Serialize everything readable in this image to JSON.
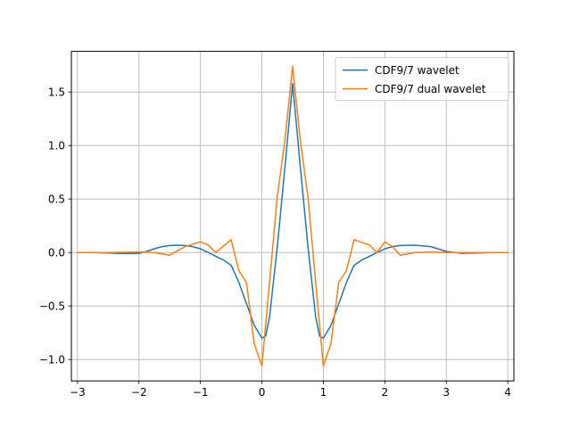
{
  "chart_data": {
    "type": "line",
    "grid": true,
    "legend_position": "top-right",
    "xlim": [
      -3.1,
      4.1
    ],
    "ylim": [
      -1.2,
      1.88
    ],
    "x_ticks": [
      -3,
      -2,
      -1,
      0,
      1,
      2,
      3,
      4
    ],
    "x_tick_labels": [
      "−3",
      "−2",
      "−1",
      "0",
      "1",
      "2",
      "3",
      "4"
    ],
    "y_ticks": [
      -1.0,
      -0.5,
      0.0,
      0.5,
      1.0,
      1.5
    ],
    "y_tick_labels": [
      "−1.0",
      "−0.5",
      "0.0",
      "0.5",
      "1.0",
      "1.5"
    ],
    "series": [
      {
        "name": "CDF9/7 wavelet",
        "color": "#1f77b4",
        "x": [
          -3.0,
          -2.75,
          -2.5,
          -2.25,
          -2.0,
          -1.875,
          -1.75,
          -1.625,
          -1.5,
          -1.375,
          -1.25,
          -1.125,
          -1.0,
          -0.875,
          -0.75,
          -0.625,
          -0.5,
          -0.375,
          -0.25,
          -0.125,
          0.0,
          0.0625,
          0.125,
          0.25,
          0.375,
          0.5,
          0.625,
          0.75,
          0.875,
          0.9375,
          1.0,
          1.125,
          1.25,
          1.375,
          1.5,
          1.625,
          1.75,
          1.875,
          2.0,
          2.125,
          2.25,
          2.5,
          2.75,
          3.0,
          3.25,
          3.5,
          3.75,
          4.0
        ],
        "y": [
          0.0,
          0.0,
          -0.005,
          -0.01,
          -0.008,
          0.01,
          0.035,
          0.055,
          0.065,
          0.068,
          0.065,
          0.055,
          0.035,
          0.0,
          -0.035,
          -0.07,
          -0.12,
          -0.28,
          -0.48,
          -0.68,
          -0.8,
          -0.78,
          -0.6,
          0.05,
          0.8,
          1.58,
          0.8,
          0.05,
          -0.6,
          -0.78,
          -0.8,
          -0.68,
          -0.48,
          -0.28,
          -0.12,
          -0.07,
          -0.035,
          0.0,
          0.035,
          0.055,
          0.065,
          0.068,
          0.055,
          0.01,
          -0.008,
          -0.005,
          0.0,
          0.0
        ]
      },
      {
        "name": "CDF9/7 dual wavelet",
        "color": "#ff7f0e",
        "x": [
          -3.0,
          -2.5,
          -2.0,
          -1.75,
          -1.5,
          -1.25,
          -1.0,
          -0.875,
          -0.75,
          -0.5,
          -0.375,
          -0.25,
          -0.125,
          0.0,
          0.125,
          0.25,
          0.375,
          0.5,
          0.625,
          0.75,
          0.875,
          1.0,
          1.125,
          1.25,
          1.375,
          1.5,
          1.75,
          1.875,
          2.0,
          2.125,
          2.25,
          2.5,
          2.75,
          3.0,
          3.5,
          4.0
        ],
        "y": [
          0.0,
          0.0,
          0.005,
          0.0,
          -0.025,
          0.055,
          0.1,
          0.07,
          0.0,
          0.12,
          -0.17,
          -0.28,
          -0.85,
          -1.06,
          -0.28,
          0.52,
          1.05,
          1.74,
          1.05,
          0.52,
          -0.28,
          -1.06,
          -0.85,
          -0.28,
          -0.17,
          0.12,
          0.07,
          0.0,
          0.1,
          0.055,
          -0.025,
          0.0,
          0.005,
          0.0,
          0.0,
          0.0
        ]
      }
    ]
  }
}
